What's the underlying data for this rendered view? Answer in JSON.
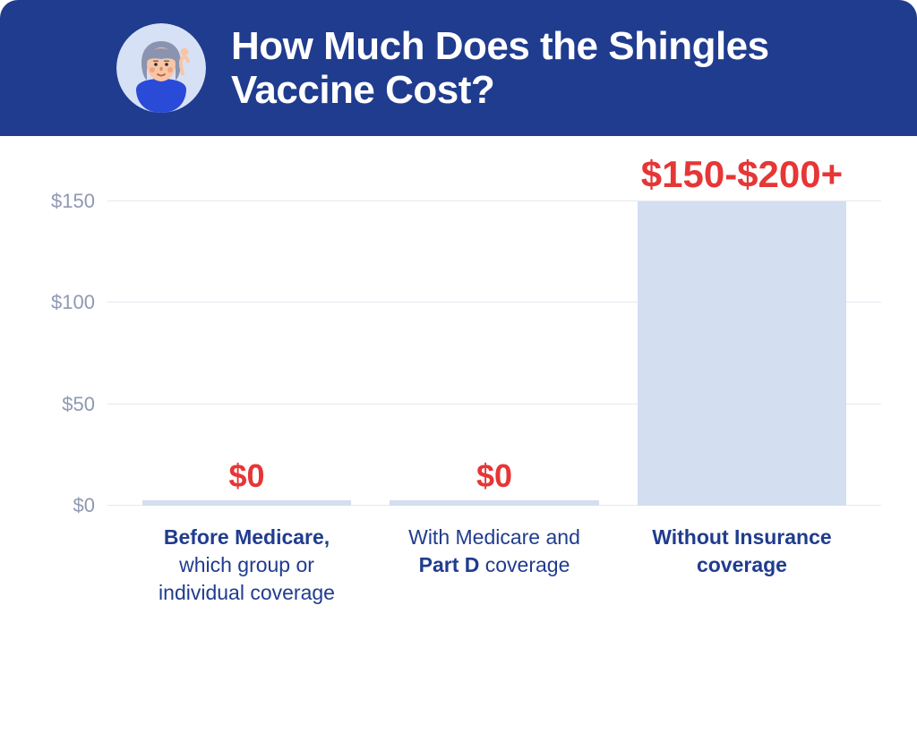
{
  "header": {
    "title": "How Much Does the Shingles Vaccine Cost?",
    "title_color": "#ffffff",
    "title_fontsize": 44,
    "background_color": "#203c8f",
    "avatar": {
      "bg": "#d7e1f5",
      "hair": "#8a94b0",
      "skin": "#f7c6a6",
      "shirt": "#2a4bd7",
      "cheek": "#f29a7a",
      "eye": "#2a2a2a",
      "brow": "#6a5a4a",
      "mouth": "#c05a3a",
      "nose": "#d88860"
    }
  },
  "chart": {
    "type": "bar",
    "background_color": "#ffffff",
    "ymax": 150,
    "ytick_step": 50,
    "yticks": [
      0,
      50,
      100,
      150
    ],
    "ytick_labels": [
      "$0",
      "$50",
      "$100",
      "$150"
    ],
    "ytick_color": "#8f98b3",
    "ytick_fontsize": 22,
    "grid_color": "#e6e9f2",
    "bar_color": "#d3def0",
    "bar_width_pct": 27,
    "bar_gap_pct": 5,
    "bars": [
      {
        "value": 2.5,
        "value_label": "$0",
        "category_html": "<b>Before Medicare,</b><br>which group or<br>individual coverage"
      },
      {
        "value": 2.5,
        "value_label": "$0",
        "category_html": "With Medicare and<br><b>Part D</b> coverage"
      },
      {
        "value": 150,
        "value_label": "$150-$200+",
        "category_html": "<b>Without Insurance<br>coverage</b>"
      }
    ],
    "value_label_color": "#e63636",
    "value_label_fontsize_small": 36,
    "value_label_fontsize_large": 42,
    "category_label_color": "#203c8f",
    "category_label_fontsize": 23
  }
}
